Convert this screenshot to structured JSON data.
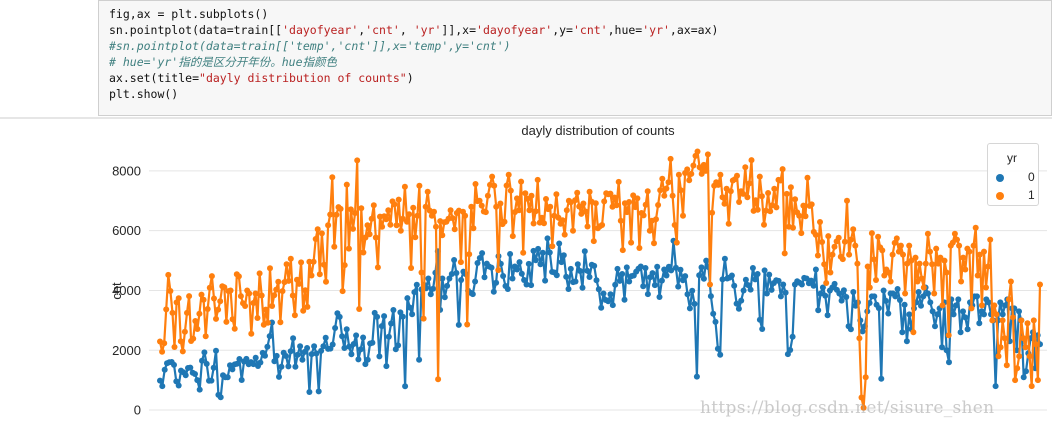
{
  "code_cell": {
    "lines": [
      {
        "parts": [
          {
            "t": "fig,ax = plt.subplots()",
            "c": "kw"
          }
        ]
      },
      {
        "parts": [
          {
            "t": "sn.pointplot(data=train[[",
            "c": "kw"
          },
          {
            "t": "'dayofyear'",
            "c": "str"
          },
          {
            "t": ",",
            "c": "kw"
          },
          {
            "t": "'cnt'",
            "c": "str"
          },
          {
            "t": ", ",
            "c": "kw"
          },
          {
            "t": "'yr'",
            "c": "str"
          },
          {
            "t": "]],x=",
            "c": "kw"
          },
          {
            "t": "'dayofyear'",
            "c": "str"
          },
          {
            "t": ",y=",
            "c": "kw"
          },
          {
            "t": "'cnt'",
            "c": "str"
          },
          {
            "t": ",hue=",
            "c": "kw"
          },
          {
            "t": "'yr'",
            "c": "str"
          },
          {
            "t": ",ax=ax)",
            "c": "kw"
          }
        ]
      },
      {
        "parts": [
          {
            "t": "#sn.pointplot(data=train[['temp','cnt']],x='temp',y='cnt')",
            "c": "cm"
          }
        ]
      },
      {
        "parts": [
          {
            "t": "# hue='yr'指的是区分开年份。hue指颜色",
            "c": "cm"
          }
        ]
      },
      {
        "parts": [
          {
            "t": "ax.set(title=",
            "c": "kw"
          },
          {
            "t": "\"dayly distribution of counts\"",
            "c": "str"
          },
          {
            "t": ")",
            "c": "kw"
          }
        ]
      },
      {
        "parts": [
          {
            "t": "plt.show()",
            "c": "kw"
          }
        ]
      }
    ]
  },
  "colors": {
    "series0": "#1f77b4",
    "series1": "#ff7f0e",
    "grid": "#e5e5e5"
  },
  "watermark": "https://blog.csdn.net/sisure_shen",
  "chart_data": {
    "type": "line",
    "title": "dayly distribution of counts",
    "xlabel": "",
    "ylabel": "cnt",
    "ylim": [
      -400,
      9100
    ],
    "yticks": [
      0,
      2000,
      4000,
      6000,
      8000
    ],
    "grid": "horizontal",
    "legend": {
      "title": "yr",
      "placement": "top-right",
      "entries": [
        "0",
        "1"
      ]
    },
    "x": "dayofyear 1-366",
    "series": [
      {
        "name": "0",
        "color": "#1f77b4",
        "values": [
          985,
          801,
          1349,
          1562,
          1600,
          1606,
          1510,
          959,
          822,
          1321,
          1263,
          1162,
          1406,
          1421,
          1248,
          1204,
          1000,
          683,
          1650,
          1927,
          1543,
          981,
          986,
          1416,
          1985,
          506,
          431,
          1167,
          1098,
          1096,
          1501,
          1360,
          1526,
          1550,
          1708,
          1005,
          1623,
          1712,
          1530,
          1605,
          1538,
          1746,
          1472,
          1589,
          1913,
          1815,
          2115,
          2475,
          2927,
          1635,
          1812,
          1107,
          1450,
          1917,
          1807,
          1461,
          1969,
          2402,
          1446,
          1851,
          2134,
          1685,
          1944,
          2077,
          605,
          1872,
          2133,
          1891,
          623,
          1977,
          2132,
          2417,
          2046,
          2056,
          2192,
          2744,
          3239,
          3117,
          2471,
          2077,
          2703,
          2121,
          1865,
          2210,
          2496,
          1693,
          2028,
          2425,
          1536,
          1685,
          2227,
          2252,
          3249,
          3115,
          1795,
          2808,
          3141,
          1471,
          2455,
          2895,
          3348,
          2034,
          2162,
          3267,
          3126,
          795,
          3744,
          3429,
          3204,
          3944,
          4189,
          1683,
          4036,
          4191,
          4073,
          4400,
          3872,
          4058,
          4595,
          5312,
          3351,
          4401,
          3771,
          4153,
          4400,
          4551,
          5020,
          4585,
          2849,
          4350,
          4630,
          4549,
          3989,
          3924,
          3877,
          4300,
          4917,
          5087,
          5250,
          4440,
          4900,
          4800,
          4765,
          3958,
          4260,
          5148,
          4891,
          4485,
          4150,
          4050,
          5220,
          4400,
          4800,
          4700,
          4950,
          4560,
          4350,
          4200,
          4890,
          4180,
          5323,
          5010,
          5390,
          4880,
          5262,
          4330,
          5740,
          5270,
          4620,
          4600,
          4510,
          5570,
          4950,
          5180,
          4460,
          4050,
          4720,
          4280,
          4300,
          4880,
          4650,
          4090,
          5310,
          4660,
          4450,
          4860,
          4820,
          4340,
          4040,
          3420,
          3900,
          3680,
          3640,
          3870,
          3510,
          4190,
          4720,
          4320,
          4550,
          3690,
          4770,
          4300,
          4480,
          4500,
          4630,
          4730,
          4800,
          4140,
          4750,
          3880,
          4440,
          4580,
          4180,
          4790,
          3780,
          4330,
          4700,
          4500,
          4790,
          4670,
          5660,
          4760,
          4130,
          4690,
          4340,
          4480,
          3870,
          3400,
          3990,
          3550,
          1120,
          4510,
          4770,
          4390,
          5000,
          4780,
          3810,
          3220,
          2950,
          2050,
          1850,
          4370,
          5060,
          4400,
          4430,
          4500,
          4160,
          3560,
          3390,
          3660,
          4000,
          4360,
          4180,
          4030,
          4750,
          4370,
          4550,
          3020,
          2710,
          4670,
          3900,
          4530,
          4020,
          4250,
          4340,
          4320,
          3800,
          4200,
          3930,
          1870,
          2010,
          2450,
          4200,
          4310,
          4260,
          4200,
          4420,
          4400,
          4240,
          4330,
          4160,
          4700,
          3340,
          3900,
          4100,
          3820,
          3170,
          4000,
          4100,
          4220,
          4020,
          3900,
          3660,
          4010,
          3780,
          2800,
          2700,
          3950,
          3490,
          3600,
          3000,
          2630,
          2800,
          3300,
          3580,
          3800,
          3800,
          3520,
          3410,
          1050,
          4000,
          3650,
          3230,
          3900,
          3900,
          3800,
          4050,
          3680,
          2600,
          3520,
          2300,
          3200,
          2700,
          3400,
          3600,
          3950,
          3490,
          3800,
          4100,
          3900,
          3600,
          3300,
          2800,
          3200,
          3400,
          2100,
          3600,
          2000,
          1600,
          3700,
          3200,
          3500,
          3700,
          2600,
          3300,
          3100,
          2700,
          3600,
          3500,
          3800,
          3800,
          2900,
          3300,
          3200,
          3700,
          3600,
          3200,
          3000,
          800,
          3000,
          3600,
          3200,
          3500,
          3700,
          2300,
          3400,
          3400,
          2000,
          3300,
          3000,
          1100,
          1300,
          1900,
          2400,
          2600,
          1400,
          2500,
          2200
        ]
      },
      {
        "name": "1",
        "color": "#ff7f0e",
        "values": [
          2294,
          1951,
          2236,
          3368,
          4521,
          3981,
          3250,
          2110,
          3600,
          3740,
          2300,
          1960,
          2620,
          3250,
          3810,
          2310,
          2390,
          2980,
          2710,
          3220,
          3860,
          3690,
          2470,
          3380,
          4090,
          4480,
          3730,
          3050,
          3360,
          3640,
          4140,
          4110,
          2950,
          3980,
          4000,
          3040,
          2720,
          4540,
          4470,
          3810,
          3570,
          3480,
          4000,
          3900,
          2550,
          3580,
          3900,
          3080,
          4570,
          3830,
          2850,
          3360,
          2920,
          4740,
          3480,
          3840,
          4030,
          4290,
          2940,
          3980,
          4280,
          4880,
          4320,
          5060,
          3830,
          3170,
          4360,
          4220,
          4940,
          3320,
          4010,
          3450,
          4960,
          4500,
          4960,
          5720,
          6050,
          4540,
          5910,
          4860,
          4290,
          6180,
          6540,
          7790,
          5460,
          6530,
          6790,
          6730,
          3980,
          4850,
          7540,
          5400,
          6710,
          6060,
          6590,
          8350,
          3380,
          6750,
          5270,
          5770,
          6180,
          5880,
          6400,
          6850,
          5770,
          4770,
          6470,
          6130,
          6480,
          6380,
          6680,
          6200,
          6980,
          6880,
          6180,
          7040,
          6000,
          6400,
          7470,
          6300,
          6550,
          4750,
          6770,
          5780,
          6500,
          7500,
          4600,
          3060,
          6800,
          7300,
          6670,
          6500,
          6630,
          6130,
          1030,
          6320,
          5850,
          6280,
          6300,
          6400,
          6680,
          6420,
          6050,
          6590,
          6670,
          4950,
          6630,
          6500,
          2860,
          5210,
          6800,
          6080,
          7560,
          6990,
          7000,
          6840,
          6640,
          6620,
          7170,
          7530,
          7810,
          7500,
          6800,
          4680,
          6910,
          6220,
          6300,
          7510,
          7870,
          7340,
          5820,
          6620,
          7080,
          6680,
          7640,
          5260,
          7250,
          7070,
          6680,
          7170,
          6240,
          6650,
          7700,
          6270,
          6430,
          6250,
          7060,
          6720,
          6800,
          5480,
          6500,
          7220,
          6430,
          6230,
          6350,
          5870,
          6680,
          7000,
          6950,
          6000,
          7020,
          7270,
          6810,
          6560,
          6910,
          6640,
          6140,
          7300,
          6970,
          5650,
          6920,
          6080,
          6150,
          6190,
          6980,
          7250,
          7220,
          7240,
          6800,
          7110,
          6850,
          7630,
          6330,
          5350,
          6920,
          6620,
          6960,
          5600,
          7180,
          6790,
          7080,
          5420,
          6590,
          6510,
          6870,
          7320,
          6000,
          6330,
          5580,
          6380,
          6860,
          7350,
          7740,
          7170,
          7410,
          7620,
          8400,
          7170,
          6190,
          5600,
          7870,
          7350,
          6500,
          7930,
          8050,
          7690,
          7900,
          8180,
          8500,
          8650,
          8120,
          7900,
          8200,
          8000,
          8550,
          4200,
          6600,
          7500,
          7620,
          7530,
          7870,
          7120,
          6900,
          7400,
          6230,
          7320,
          7680,
          7720,
          7840,
          6960,
          7320,
          7230,
          8120,
          7120,
          7580,
          8360,
          6660,
          7020,
          6700,
          7810,
          7150,
          6200,
          6670,
          7260,
          6650,
          6850,
          7400,
          6780,
          7700,
          7680,
          8060,
          5240,
          7230,
          6130,
          7450,
          6100,
          7050,
          6610,
          6500,
          5920,
          6840,
          6480,
          7770,
          6830,
          6880,
          5960,
          5860,
          5170,
          6290,
          5620,
          4880,
          4250,
          5820,
          4600,
          5200,
          5460,
          5640,
          5760,
          5130,
          5050,
          5630,
          7000,
          5200,
          5700,
          6050,
          5500,
          4900,
          2400,
          420,
          80,
          1100,
          4800,
          4100,
          5920,
          5040,
          4350,
          5800,
          5440,
          5340,
          4500,
          4700,
          4600,
          4300,
          5200,
          5590,
          5740,
          5300,
          5500,
          5200,
          3900,
          4900,
          5500,
          5000,
          2600,
          5100,
          4300,
          4900,
          4400,
          4100,
          4900,
          5900,
          5300,
          4880,
          3900,
          5400,
          4900,
          5100,
          3500,
          5000,
          4600,
          2500,
          5500,
          5600,
          5900,
          5700,
          5500,
          4300,
          5100,
          4700,
          5400,
          5300,
          3400,
          5500,
          6100,
          4500,
          5200,
          3500,
          5300,
          4100,
          4800,
          5700,
          3000,
          3500,
          3200,
          1800,
          2100,
          3000,
          2400,
          1500,
          3700,
          4300,
          3100,
          1000,
          1400,
          1800,
          3000,
          2400,
          2100,
          2900,
          1800,
          800,
          3000,
          2200,
          1000,
          4200
        ]
      }
    ]
  }
}
